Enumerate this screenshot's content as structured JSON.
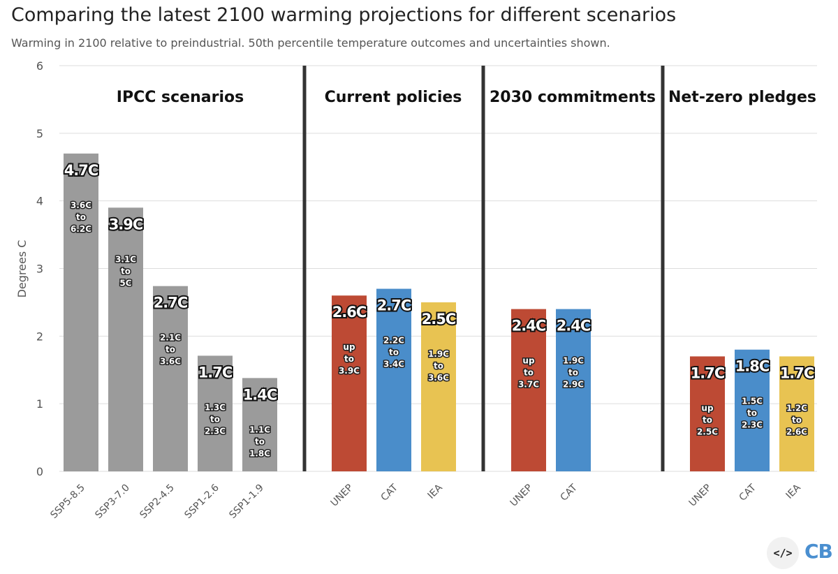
{
  "chart_data": {
    "type": "bar",
    "title": "Comparing the latest 2100 warming projections for different scenarios",
    "subtitle": "Warming in 2100 relative to preindustrial. 50th percentile temperature outcomes and uncertainties shown.",
    "ylabel": "Degrees C",
    "ylim": [
      0,
      6
    ],
    "yticks": [
      "0",
      "1",
      "2",
      "3",
      "4",
      "5",
      "6"
    ],
    "colors": {
      "grey": "#9b9b9b",
      "red": "#bd4a34",
      "blue": "#4a8dca",
      "yellow": "#e8c352",
      "divider": "#333333",
      "grid": "#dddddd"
    },
    "groups": [
      {
        "name": "IPCC scenarios",
        "bars": [
          {
            "category": "SSP5-8.5",
            "value": 4.7,
            "label": "4.7C",
            "range": [
              "3.6C",
              "to",
              "6.2C"
            ],
            "color": "grey"
          },
          {
            "category": "SSP3-7.0",
            "value": 3.9,
            "label": "3.9C",
            "range": [
              "3.1C",
              "to",
              "5C"
            ],
            "color": "grey"
          },
          {
            "category": "SSP2-4.5",
            "value": 2.74,
            "label": "2.7C",
            "range": [
              "2.1C",
              "to",
              "3.6C"
            ],
            "color": "grey"
          },
          {
            "category": "SSP1-2.6",
            "value": 1.71,
            "label": "1.7C",
            "range": [
              "1.3C",
              "to",
              "2.3C"
            ],
            "color": "grey"
          },
          {
            "category": "SSP1-1.9",
            "value": 1.38,
            "label": "1.4C",
            "range": [
              "1.1C",
              "to",
              "1.8C"
            ],
            "color": "grey"
          }
        ]
      },
      {
        "name": "Current policies",
        "bars": [
          {
            "category": "UNEP",
            "value": 2.6,
            "label": "2.6C",
            "range": [
              "up",
              "to",
              "3.9C"
            ],
            "color": "red"
          },
          {
            "category": "CAT",
            "value": 2.7,
            "label": "2.7C",
            "range": [
              "2.2C",
              "to",
              "3.4C"
            ],
            "color": "blue"
          },
          {
            "category": "IEA",
            "value": 2.5,
            "label": "2.5C",
            "range": [
              "1.9C",
              "to",
              "3.6C"
            ],
            "color": "yellow"
          }
        ]
      },
      {
        "name": "2030 commitments",
        "bars": [
          {
            "category": "UNEP",
            "value": 2.4,
            "label": "2.4C",
            "range": [
              "up",
              "to",
              "3.7C"
            ],
            "color": "red"
          },
          {
            "category": "CAT",
            "value": 2.4,
            "label": "2.4C",
            "range": [
              "1.9C",
              "to",
              "2.9C"
            ],
            "color": "blue"
          }
        ]
      },
      {
        "name": "Net-zero pledges",
        "bars": [
          {
            "category": "UNEP",
            "value": 1.7,
            "label": "1.7C",
            "range": [
              "up",
              "to",
              "2.5C"
            ],
            "color": "red"
          },
          {
            "category": "CAT",
            "value": 1.8,
            "label": "1.8C",
            "range": [
              "1.5C",
              "to",
              "2.3C"
            ],
            "color": "blue"
          },
          {
            "category": "IEA",
            "value": 1.7,
            "label": "1.7C",
            "range": [
              "1.2C",
              "to",
              "2.6C"
            ],
            "color": "yellow"
          }
        ]
      }
    ]
  },
  "footer": {
    "embed_icon": "code-icon",
    "embed_symbol": "</>",
    "brand": "CB"
  }
}
